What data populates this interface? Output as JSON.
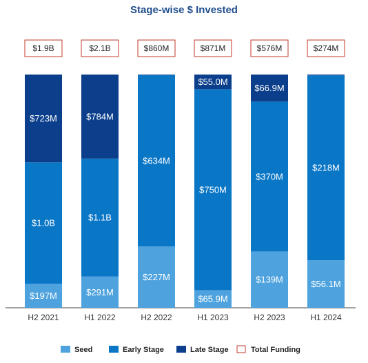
{
  "chart_data": {
    "type": "stacked_bar_100",
    "title": "Stage-wise $ Invested",
    "categories": [
      "H2 2021",
      "H1 2022",
      "H2 2022",
      "H1 2023",
      "H2 2023",
      "H1 2024"
    ],
    "series": [
      {
        "name": "Seed",
        "color": "#4ea3de",
        "values": [
          197,
          291,
          227,
          65.9,
          139,
          56.1
        ],
        "value_labels": [
          "$197M",
          "$291M",
          "$227M",
          "$65.9M",
          "$139M",
          "$56.1M"
        ]
      },
      {
        "name": "Early Stage",
        "color": "#0a76c6",
        "values": [
          1000,
          1100,
          634,
          750,
          370,
          218
        ],
        "value_labels": [
          "$1.0B",
          "$1.1B",
          "$634M",
          "$750M",
          "$370M",
          "$218M"
        ]
      },
      {
        "name": "Late Stage",
        "color": "#0b3f8c",
        "values": [
          723,
          784,
          2,
          55.0,
          66.9,
          1
        ],
        "value_labels": [
          "$723M",
          "$784M",
          null,
          "$55.0M",
          "$66.9M",
          null
        ]
      }
    ],
    "totals": {
      "name": "Total Funding",
      "color": "#c0392b",
      "values": [
        1900,
        2100,
        860,
        871,
        576,
        274
      ],
      "value_labels": [
        "$1.9B",
        "$2.1B",
        "$860M",
        "$871M",
        "$576M",
        "$274M"
      ]
    }
  }
}
